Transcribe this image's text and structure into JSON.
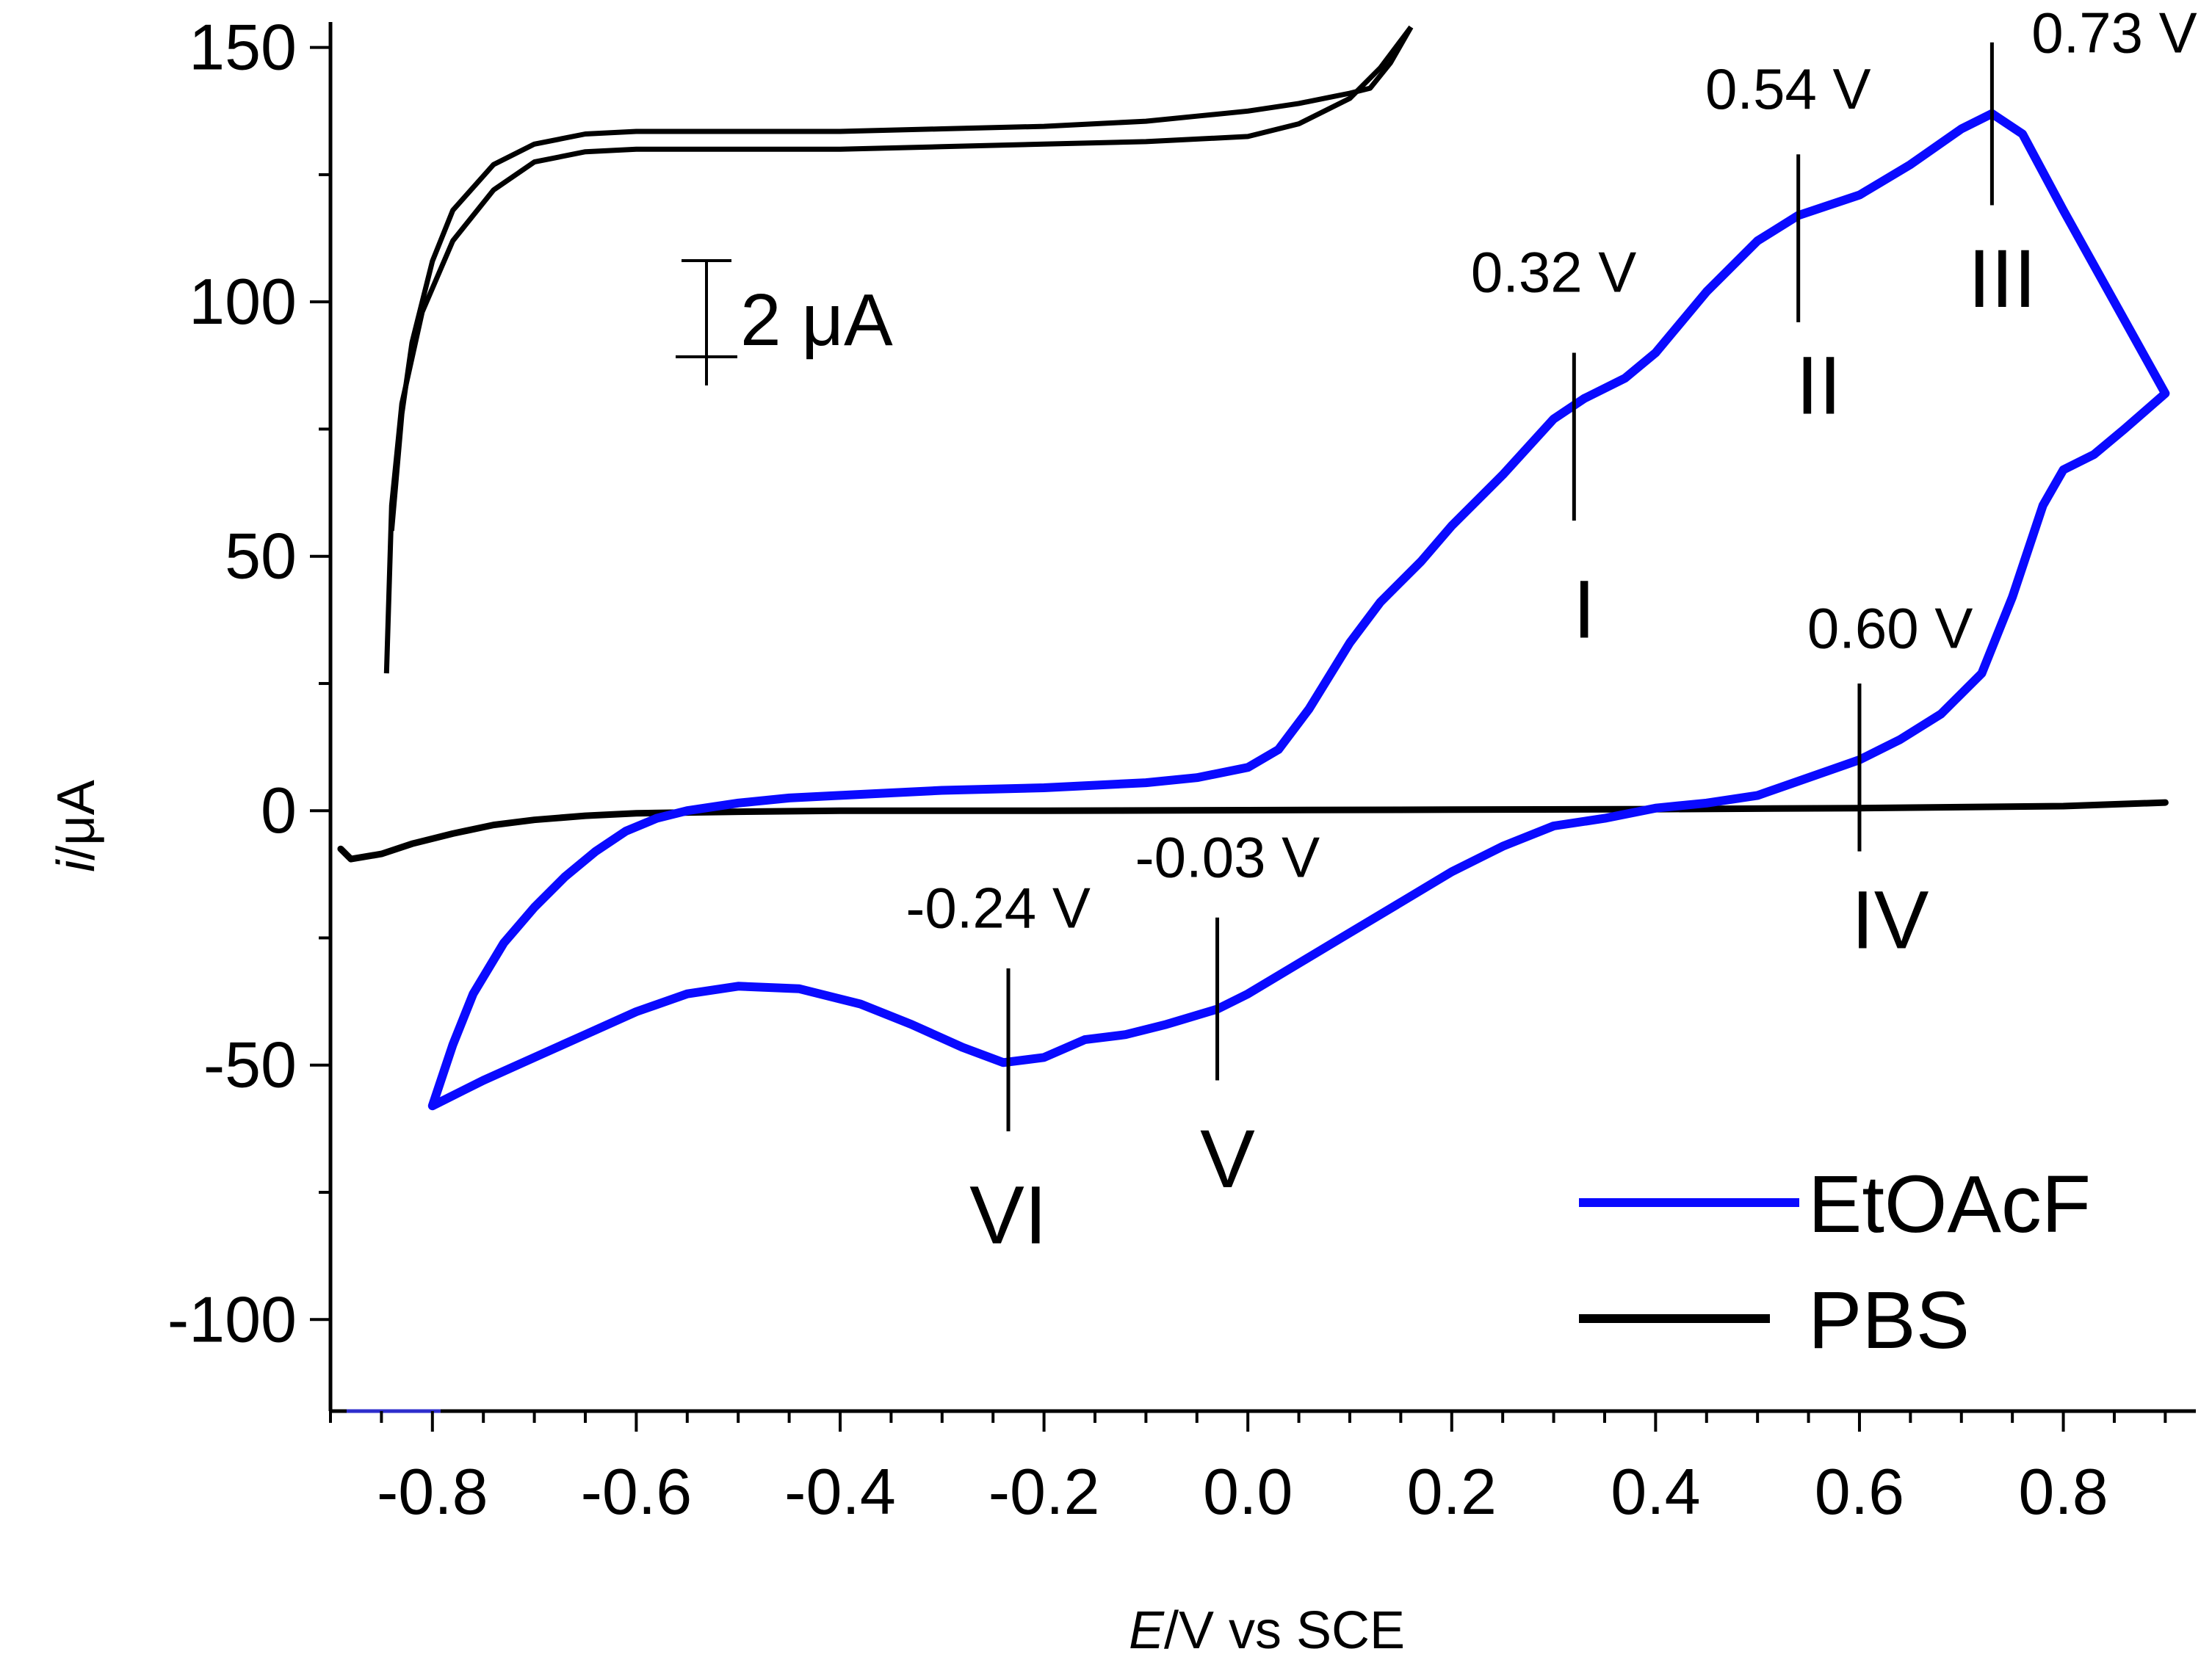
{
  "chart_data": {
    "type": "line",
    "title": "",
    "xlabel": {
      "italic": "E",
      "rest": "/V vs SCE"
    },
    "ylabel": {
      "italic": "i",
      "rest": "/μA"
    },
    "xlim": [
      -0.9,
      0.93
    ],
    "ylim": [
      -118,
      155
    ],
    "x_ticks": [
      -0.8,
      -0.6,
      -0.4,
      -0.2,
      0.0,
      0.2,
      0.4,
      0.6,
      0.8
    ],
    "x_tick_labels": [
      "-0.8",
      "-0.6",
      "-0.4",
      "-0.2",
      "0.0",
      "0.2",
      "0.4",
      "0.6",
      "0.8"
    ],
    "y_ticks": [
      150,
      100,
      50,
      0,
      -50,
      -100
    ],
    "y_tick_labels": [
      "150",
      "100",
      "50",
      "0",
      "-50",
      "-100"
    ],
    "grid": false,
    "legend_position": "bottom-right",
    "series": [
      {
        "name": "EtOAcF",
        "color": "#0a0aff",
        "x": [
          -0.8,
          -0.78,
          -0.76,
          -0.73,
          -0.7,
          -0.67,
          -0.64,
          -0.61,
          -0.58,
          -0.55,
          -0.5,
          -0.45,
          -0.4,
          -0.3,
          -0.2,
          -0.1,
          -0.05,
          0.0,
          0.03,
          0.06,
          0.1,
          0.13,
          0.17,
          0.2,
          0.25,
          0.3,
          0.33,
          0.37,
          0.4,
          0.45,
          0.5,
          0.54,
          0.6,
          0.65,
          0.7,
          0.73,
          0.76,
          0.8,
          0.85,
          0.9,
          0.86,
          0.83,
          0.8,
          0.78,
          0.75,
          0.72,
          0.68,
          0.64,
          0.6,
          0.55,
          0.5,
          0.45,
          0.4,
          0.35,
          0.3,
          0.25,
          0.2,
          0.15,
          0.1,
          0.05,
          0.0,
          -0.03,
          -0.08,
          -0.12,
          -0.16,
          -0.2,
          -0.24,
          -0.28,
          -0.33,
          -0.38,
          -0.44,
          -0.5,
          -0.55,
          -0.6,
          -0.65,
          -0.7,
          -0.75,
          -0.8
        ],
        "y": [
          -58,
          -46,
          -36,
          -26,
          -19,
          -13,
          -8,
          -4,
          -1.5,
          0,
          1.5,
          2.5,
          3,
          4,
          4.5,
          5.5,
          6.5,
          8.5,
          12,
          20,
          33,
          41,
          49,
          56,
          66,
          77,
          81,
          85,
          90,
          102,
          112,
          117,
          121,
          127,
          134,
          137,
          133,
          118,
          100,
          82,
          75,
          70,
          67,
          60,
          42,
          27,
          19,
          14,
          10,
          6.5,
          3,
          1.5,
          0.5,
          -1.5,
          -3,
          -7,
          -12,
          -18,
          -24,
          -30,
          -36,
          -39,
          -42,
          -44,
          -45,
          -48.5,
          -49.5,
          -46.5,
          -42,
          -38,
          -35,
          -34.5,
          -36,
          -39.5,
          -44,
          -48.5,
          -53,
          -58
        ]
      },
      {
        "name": "PBS",
        "color": "#000000",
        "x": [
          -0.89,
          -0.88,
          -0.85,
          -0.82,
          -0.78,
          -0.74,
          -0.7,
          -0.65,
          -0.6,
          -0.5,
          -0.4,
          -0.2,
          0.0,
          0.2,
          0.4,
          0.6,
          0.8,
          0.9
        ],
        "y": [
          -7.5,
          -9.5,
          -8.5,
          -6.5,
          -4.5,
          -2.8,
          -1.8,
          -1.0,
          -0.5,
          -0.2,
          0.0,
          0.0,
          0.1,
          0.2,
          0.3,
          0.5,
          0.9,
          1.6
        ]
      }
    ],
    "inset": {
      "description_scale": "2 μA",
      "curve_forward": {
        "x": [
          -0.845,
          -0.84,
          -0.83,
          -0.81,
          -0.78,
          -0.74,
          -0.7,
          -0.65,
          -0.6,
          -0.5,
          -0.4,
          -0.3,
          -0.2,
          -0.1,
          -0.05,
          0.0,
          0.05,
          0.1,
          0.13,
          0.16
        ],
        "y": [
          27,
          60,
          80,
          98,
          112,
          122,
          127.5,
          129.5,
          130,
          130,
          130,
          130.5,
          131,
          131.5,
          132,
          132.5,
          135,
          140,
          146,
          154
        ]
      },
      "curve_reverse": {
        "x": [
          0.16,
          0.14,
          0.12,
          0.1,
          0.05,
          0.0,
          -0.05,
          -0.1,
          -0.2,
          -0.3,
          -0.4,
          -0.5,
          -0.6,
          -0.65,
          -0.7,
          -0.74,
          -0.78,
          -0.8,
          -0.82,
          -0.83,
          -0.84
        ],
        "y": [
          154,
          147,
          142,
          141,
          139,
          137.5,
          136.5,
          135.5,
          134.5,
          134,
          133.5,
          133.5,
          133.5,
          133,
          131,
          127,
          118,
          108,
          92,
          78,
          55
        ]
      }
    },
    "annotations": [
      {
        "roman": "I",
        "value_label": "0.32 V",
        "x": 0.32,
        "line_y": [
          57,
          90
        ],
        "value_pos": [
          0.3,
          102
        ],
        "roman_pos": [
          0.33,
          34
        ]
      },
      {
        "roman": "II",
        "value_label": "0.54 V",
        "x": 0.54,
        "line_y": [
          96,
          129
        ],
        "value_pos": [
          0.53,
          138
        ],
        "roman_pos": [
          0.56,
          78
        ]
      },
      {
        "roman": "III",
        "value_label": "0.73 V",
        "x": 0.73,
        "line_y": [
          119,
          151
        ],
        "value_pos": [
          0.85,
          149
        ],
        "roman_pos": [
          0.74,
          99
        ]
      },
      {
        "roman": "IV",
        "value_label": "0.60 V",
        "x": 0.6,
        "line_y": [
          -8,
          25
        ],
        "value_pos": [
          0.63,
          32
        ],
        "roman_pos": [
          0.63,
          -27
        ]
      },
      {
        "roman": "V",
        "value_label": "-0.03 V",
        "x": -0.03,
        "line_y": [
          -53,
          -21
        ],
        "value_pos": [
          -0.02,
          -13
        ],
        "roman_pos": [
          -0.02,
          -74
        ]
      },
      {
        "roman": "VI",
        "value_label": "-0.24 V",
        "x": -0.235,
        "line_y": [
          -63,
          -31
        ],
        "value_pos": [
          -0.245,
          -23
        ],
        "roman_pos": [
          -0.235,
          -85
        ]
      }
    ]
  }
}
